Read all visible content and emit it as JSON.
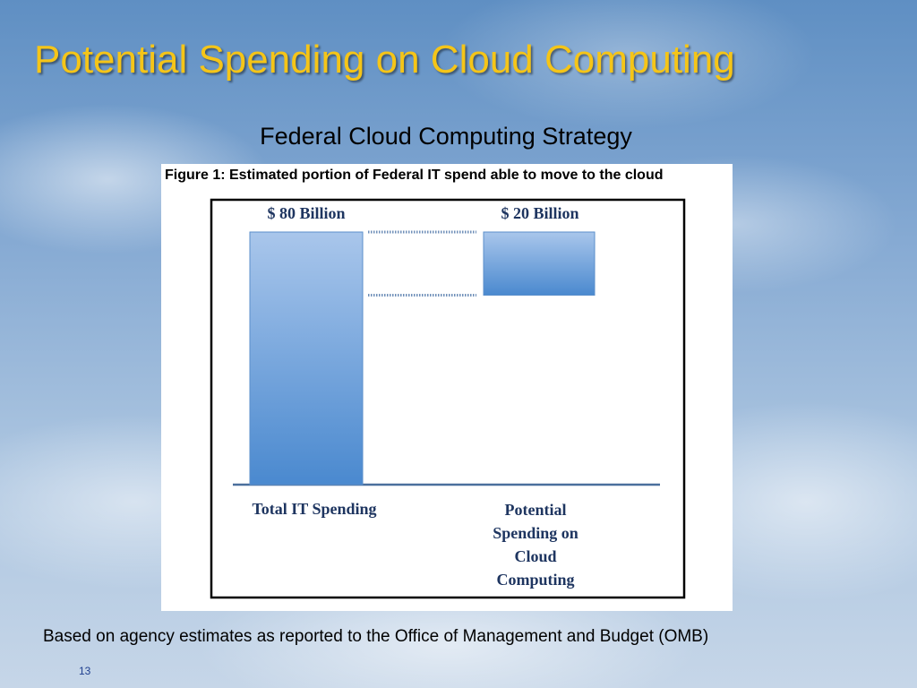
{
  "slide": {
    "title": "Potential Spending on Cloud Computing",
    "subtitle": "Federal Cloud Computing Strategy",
    "footnote": "Based on agency estimates as reported to the Office of Management and Budget (OMB)",
    "page_number": "13",
    "title_color": "#f5c518"
  },
  "figure": {
    "caption": "Figure 1: Estimated portion of Federal IT spend able to move to the cloud"
  },
  "chart_data": {
    "type": "bar",
    "categories": [
      "Total IT Spending",
      "Potential Spending on Cloud Computing"
    ],
    "category_label_lines": [
      [
        "Total IT Spending"
      ],
      [
        "Potential",
        "Spending on",
        "Cloud",
        "Computing"
      ]
    ],
    "values": [
      80,
      20
    ],
    "value_labels": [
      "$ 80 Billion",
      "$ 20 Billion"
    ],
    "unit": "Billion USD",
    "second_bar_floating_from": 60,
    "ylim": [
      0,
      80
    ],
    "grid": false,
    "legend": "none",
    "bar_color_top": "#a9c6eb",
    "bar_color_bottom": "#4a89cf"
  }
}
